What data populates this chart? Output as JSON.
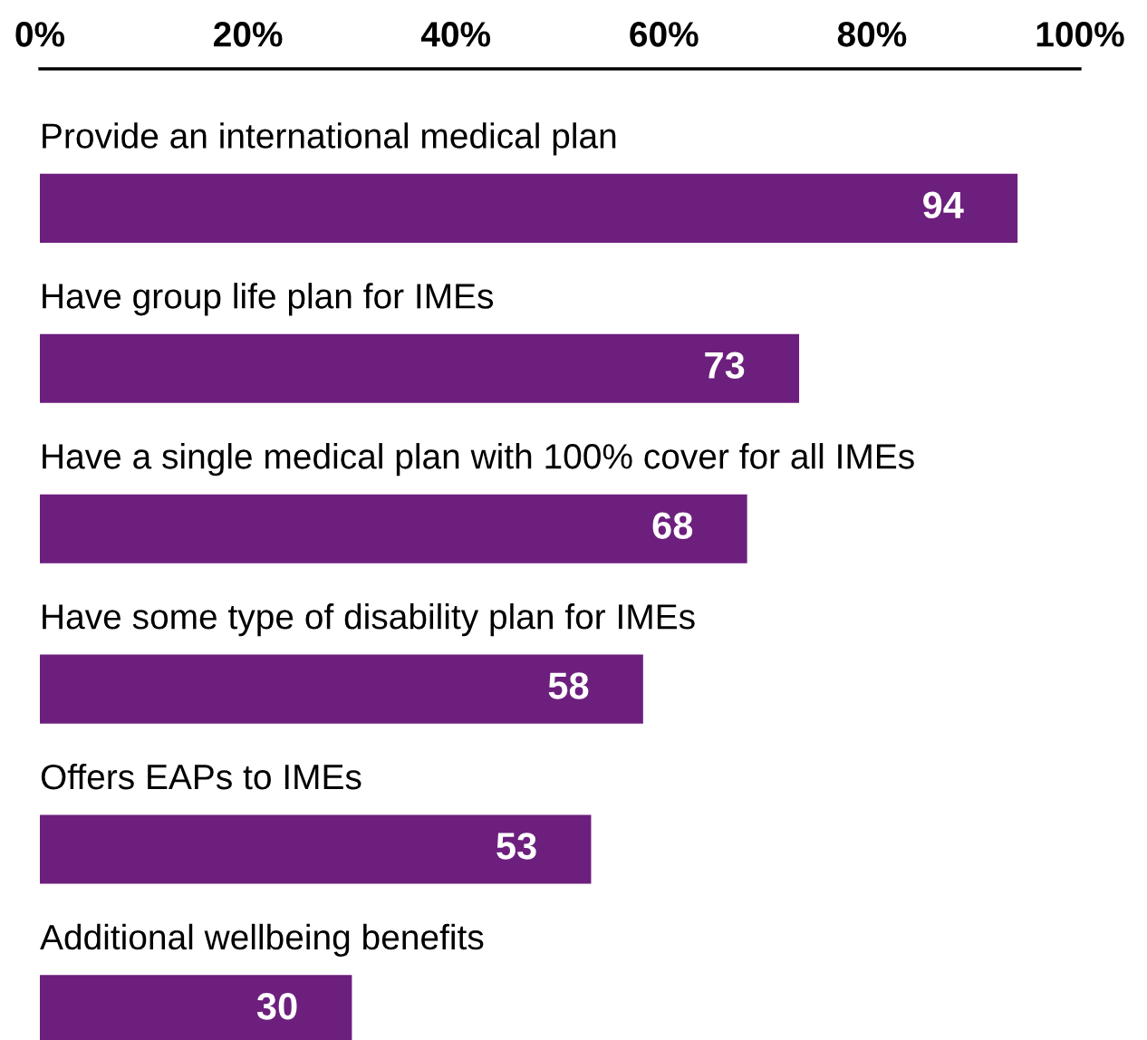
{
  "chart_data": {
    "type": "bar",
    "orientation": "horizontal",
    "categories": [
      "Provide an international medical plan",
      "Have group life plan for IMEs",
      "Have a single medical plan with 100% cover for all IMEs",
      "Have some type of disability plan for IMEs",
      "Offers EAPs to IMEs",
      "Additional wellbeing benefits"
    ],
    "values": [
      94,
      73,
      68,
      58,
      53,
      30
    ],
    "color": "#6d1f7e",
    "xlim": [
      0,
      100
    ],
    "xticks": [
      {
        "value": 0,
        "label": "0%"
      },
      {
        "value": 20,
        "label": "20%"
      },
      {
        "value": 40,
        "label": "40%"
      },
      {
        "value": 60,
        "label": "60%"
      },
      {
        "value": 80,
        "label": "80%"
      },
      {
        "value": 100,
        "label": "100%"
      }
    ],
    "data_labels": true,
    "grid": false,
    "legend": false
  }
}
